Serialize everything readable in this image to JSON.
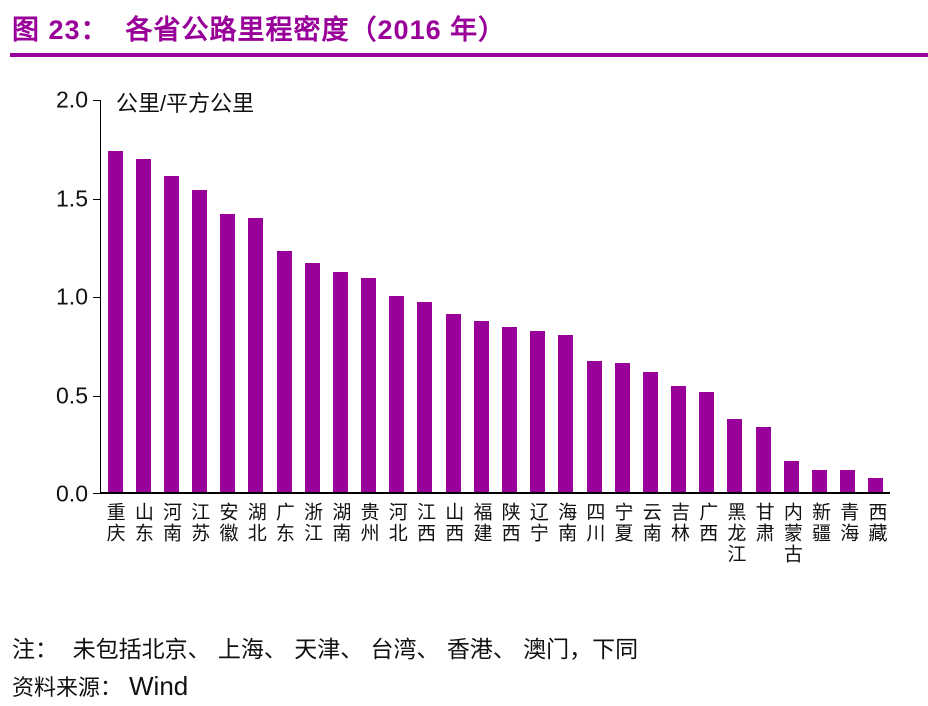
{
  "header": {
    "title": "图 23：  各省公路里程密度（2016 年）"
  },
  "footer": {
    "note": "注：  未包括北京、 上海、 天津、 台湾、 香港、 澳门，下同",
    "source_label": "资料来源：",
    "source_value": "Wind"
  },
  "colors": {
    "accent": "#990099",
    "bar": "#990099",
    "axis": "#000000",
    "text": "#111111"
  },
  "chart_data": {
    "type": "bar",
    "title": "各省公路里程密度（2016 年）",
    "unit_label": "公里/平方公里",
    "xlabel": "",
    "ylabel": "公里/平方公里",
    "ylim": [
      0,
      2.0
    ],
    "yticks": [
      2.0,
      1.5,
      1.0,
      0.5,
      0.0
    ],
    "ytick_labels": [
      "2.0",
      "1.5",
      "1.0",
      "0.5",
      "0.0"
    ],
    "grid": false,
    "legend": "none",
    "categories": [
      "重庆",
      "山东",
      "河南",
      "江苏",
      "安徽",
      "湖北",
      "广东",
      "浙江",
      "湖南",
      "贵州",
      "河北",
      "江西",
      "山西",
      "福建",
      "陕西",
      "辽宁",
      "海南",
      "四川",
      "宁夏",
      "云南",
      "吉林",
      "广西",
      "黑龙江",
      "甘肃",
      "内蒙古",
      "新疆",
      "青海",
      "西藏"
    ],
    "values": [
      1.74,
      1.7,
      1.61,
      1.54,
      1.42,
      1.4,
      1.23,
      1.17,
      1.12,
      1.09,
      1.0,
      0.97,
      0.91,
      0.87,
      0.84,
      0.82,
      0.8,
      0.67,
      0.66,
      0.61,
      0.54,
      0.51,
      0.37,
      0.33,
      0.16,
      0.11,
      0.11,
      0.07
    ]
  }
}
